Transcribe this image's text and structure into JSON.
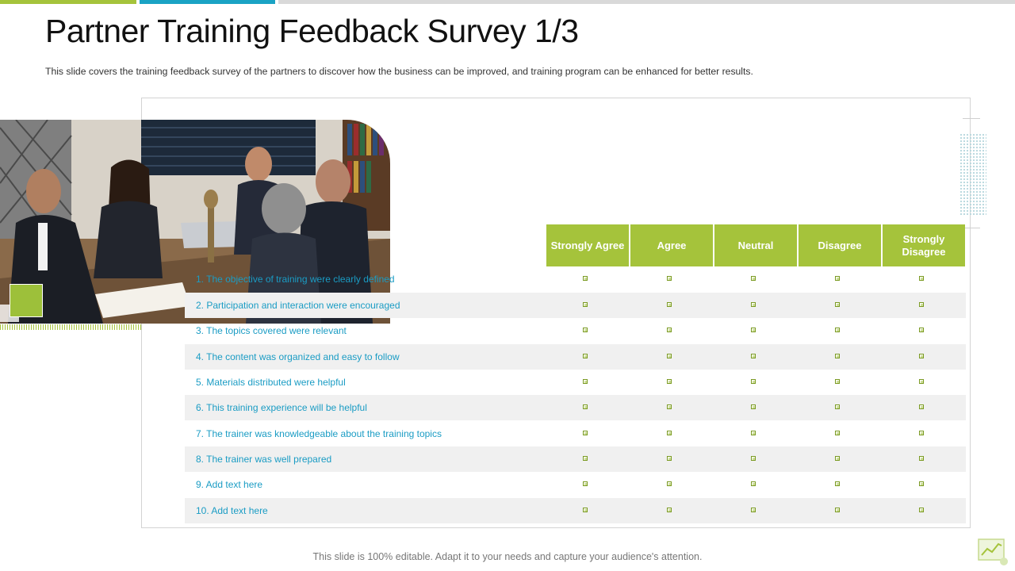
{
  "slide": {
    "title": "Partner Training Feedback Survey 1/3",
    "subtitle": "This slide covers the training feedback survey of the partners to discover how the business can be improved,  and training program can be enhanced for better results.",
    "footer": "This slide is 100% editable. Adapt it to your needs and capture your audience's attention."
  },
  "survey": {
    "columns": [
      "Strongly Agree",
      "Agree",
      "Neutral",
      "Disagree",
      "Strongly Disagree"
    ],
    "rows": [
      "1. The objective of training were clearly defined",
      "2. Participation and interaction were encouraged",
      "3. The topics covered were relevant",
      "4. The content was organized and easy to follow",
      "5. Materials distributed were helpful",
      "6. This training experience will be helpful",
      "7. The trainer was knowledgeable about the training topics",
      "8. The trainer was well prepared",
      "9. Add text  here",
      "10. Add text here"
    ]
  },
  "colors": {
    "accent_green": "#a5c33b",
    "accent_blue": "#1aa3c4",
    "row_shade": "#f0f0f0",
    "row_text": "#1a9cc4"
  },
  "icons": {
    "photo": "business-meeting-photo",
    "checkbox": "checkbox-icon",
    "corner": "chart-board-icon"
  }
}
